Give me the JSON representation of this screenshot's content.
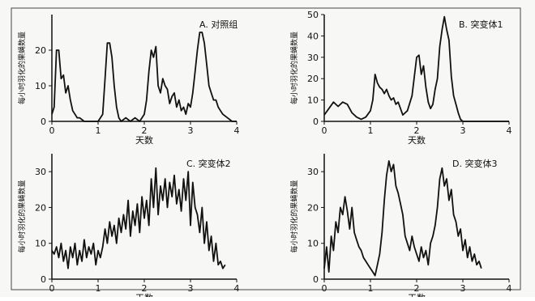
{
  "chart_data": [
    {
      "type": "line",
      "title": "A. 对照组",
      "xlabel": "天数",
      "ylabel": "每小时羽化的果蝇数量",
      "xlim": [
        0,
        4
      ],
      "ylim": [
        0,
        30
      ],
      "xticks": [
        "0",
        "1",
        "2",
        "3",
        "4"
      ],
      "yticks": [
        "0",
        "10",
        "20"
      ],
      "series": [
        {
          "x": [
            0.0,
            0.05,
            0.1,
            0.15,
            0.2,
            0.25,
            0.3,
            0.35,
            0.4,
            0.45,
            0.5,
            0.55,
            0.6,
            0.7,
            0.8,
            0.9,
            1.0,
            1.1,
            1.15,
            1.2,
            1.25,
            1.3,
            1.35,
            1.4,
            1.45,
            1.5,
            1.6,
            1.7,
            1.8,
            1.9,
            2.0,
            2.05,
            2.1,
            2.15,
            2.2,
            2.25,
            2.3,
            2.35,
            2.4,
            2.45,
            2.5,
            2.55,
            2.6,
            2.65,
            2.7,
            2.75,
            2.8,
            2.85,
            2.9,
            2.95,
            3.0,
            3.05,
            3.1,
            3.15,
            3.2,
            3.25,
            3.3,
            3.35,
            3.4,
            3.45,
            3.5,
            3.55,
            3.6,
            3.65,
            3.7,
            3.8,
            3.9,
            4.0
          ],
          "y": [
            2,
            4,
            20,
            20,
            12,
            13,
            8,
            10,
            6,
            3,
            2,
            1,
            1,
            0,
            0,
            0,
            0,
            2,
            12,
            22,
            22,
            18,
            10,
            4,
            1,
            0,
            1,
            0,
            1,
            0,
            2,
            6,
            14,
            20,
            18,
            21,
            10,
            8,
            12,
            10,
            9,
            5,
            7,
            8,
            4,
            6,
            3,
            4,
            2,
            5,
            4,
            8,
            14,
            20,
            25,
            25,
            22,
            16,
            10,
            8,
            6,
            6,
            4,
            3,
            2,
            1,
            0,
            0
          ]
        }
      ]
    },
    {
      "type": "line",
      "title": "B. 突变体1",
      "xlabel": "天数",
      "ylabel": "每小时羽化的果蝇数量",
      "xlim": [
        0,
        4
      ],
      "ylim": [
        0,
        50
      ],
      "xticks": [
        "0",
        "1",
        "2",
        "3",
        "4"
      ],
      "yticks": [
        "0",
        "10",
        "20",
        "30",
        "40",
        "50"
      ],
      "series": [
        {
          "x": [
            0.0,
            0.1,
            0.2,
            0.3,
            0.4,
            0.5,
            0.6,
            0.7,
            0.8,
            0.9,
            1.0,
            1.05,
            1.1,
            1.15,
            1.2,
            1.25,
            1.3,
            1.35,
            1.4,
            1.45,
            1.5,
            1.55,
            1.6,
            1.7,
            1.8,
            1.9,
            2.0,
            2.05,
            2.1,
            2.15,
            2.2,
            2.25,
            2.3,
            2.35,
            2.4,
            2.45,
            2.5,
            2.55,
            2.6,
            2.65,
            2.7,
            2.75,
            2.8,
            2.85,
            2.9,
            2.95,
            3.0,
            3.1,
            3.2,
            3.3,
            3.4,
            3.5,
            3.6,
            3.7,
            3.8,
            3.9,
            4.0
          ],
          "y": [
            3,
            6,
            9,
            7,
            9,
            8,
            4,
            2,
            1,
            2,
            5,
            10,
            22,
            18,
            16,
            15,
            13,
            15,
            12,
            10,
            11,
            8,
            9,
            3,
            5,
            12,
            30,
            31,
            22,
            26,
            16,
            9,
            6,
            8,
            15,
            20,
            35,
            43,
            49,
            43,
            38,
            21,
            12,
            8,
            4,
            1,
            0,
            0,
            0,
            0,
            0,
            0,
            0,
            0,
            0,
            0,
            0
          ]
        }
      ]
    },
    {
      "type": "line",
      "title": "C. 突变体2",
      "xlabel": "天数",
      "ylabel": "每小时羽化的果蝇数量",
      "xlim": [
        0,
        4
      ],
      "ylim": [
        0,
        35
      ],
      "xticks": [
        "0",
        "1",
        "2",
        "3",
        "4"
      ],
      "yticks": [
        "0",
        "10",
        "20",
        "30"
      ],
      "series": [
        {
          "x": [
            0.0,
            0.05,
            0.1,
            0.15,
            0.2,
            0.25,
            0.3,
            0.35,
            0.4,
            0.45,
            0.5,
            0.55,
            0.6,
            0.65,
            0.7,
            0.75,
            0.8,
            0.85,
            0.9,
            0.95,
            1.0,
            1.05,
            1.1,
            1.15,
            1.2,
            1.25,
            1.3,
            1.35,
            1.4,
            1.45,
            1.5,
            1.55,
            1.6,
            1.65,
            1.7,
            1.75,
            1.8,
            1.85,
            1.9,
            1.95,
            2.0,
            2.05,
            2.1,
            2.15,
            2.2,
            2.25,
            2.3,
            2.35,
            2.4,
            2.45,
            2.5,
            2.55,
            2.6,
            2.65,
            2.7,
            2.75,
            2.8,
            2.85,
            2.9,
            2.95,
            3.0,
            3.05,
            3.1,
            3.15,
            3.2,
            3.25,
            3.3,
            3.35,
            3.4,
            3.45,
            3.5,
            3.55,
            3.6,
            3.65,
            3.7,
            3.75
          ],
          "y": [
            8,
            7,
            9,
            6,
            10,
            5,
            8,
            3,
            9,
            6,
            10,
            4,
            8,
            5,
            11,
            6,
            9,
            7,
            10,
            4,
            8,
            6,
            9,
            14,
            10,
            16,
            12,
            15,
            10,
            17,
            13,
            18,
            14,
            22,
            12,
            19,
            15,
            21,
            13,
            23,
            17,
            22,
            15,
            28,
            20,
            31,
            18,
            26,
            22,
            28,
            20,
            27,
            23,
            29,
            21,
            25,
            19,
            28,
            22,
            30,
            15,
            27,
            20,
            18,
            13,
            20,
            10,
            16,
            8,
            12,
            5,
            10,
            4,
            5,
            3,
            4
          ]
        }
      ]
    },
    {
      "type": "line",
      "title": "D. 突变体3",
      "xlabel": "天数",
      "ylabel": "每小时羽化的果蝇数量",
      "xlim": [
        0,
        4
      ],
      "ylim": [
        0,
        35
      ],
      "xticks": [
        "0",
        "1",
        "2",
        "3",
        "4"
      ],
      "yticks": [
        "0",
        "10",
        "20",
        "30"
      ],
      "series": [
        {
          "x": [
            0.0,
            0.05,
            0.1,
            0.15,
            0.2,
            0.25,
            0.3,
            0.35,
            0.4,
            0.45,
            0.5,
            0.55,
            0.6,
            0.65,
            0.7,
            0.75,
            0.8,
            0.85,
            0.9,
            0.95,
            1.0,
            1.05,
            1.1,
            1.15,
            1.2,
            1.25,
            1.3,
            1.35,
            1.4,
            1.45,
            1.5,
            1.55,
            1.6,
            1.65,
            1.7,
            1.75,
            1.8,
            1.85,
            1.9,
            1.95,
            2.0,
            2.05,
            2.1,
            2.15,
            2.2,
            2.25,
            2.3,
            2.35,
            2.4,
            2.45,
            2.5,
            2.55,
            2.6,
            2.65,
            2.7,
            2.75,
            2.8,
            2.85,
            2.9,
            2.95,
            3.0,
            3.05,
            3.1,
            3.15,
            3.2,
            3.25,
            3.3,
            3.35,
            3.4
          ],
          "y": [
            3,
            9,
            2,
            12,
            8,
            16,
            13,
            20,
            18,
            23,
            19,
            14,
            20,
            13,
            11,
            9,
            8,
            6,
            5,
            4,
            3,
            2,
            1,
            4,
            7,
            13,
            22,
            29,
            33,
            30,
            32,
            26,
            24,
            21,
            18,
            12,
            10,
            8,
            12,
            9,
            7,
            5,
            9,
            6,
            8,
            4,
            10,
            12,
            15,
            20,
            28,
            31,
            26,
            28,
            22,
            25,
            18,
            16,
            12,
            14,
            8,
            11,
            6,
            9,
            5,
            7,
            4,
            5,
            3
          ]
        }
      ]
    }
  ]
}
